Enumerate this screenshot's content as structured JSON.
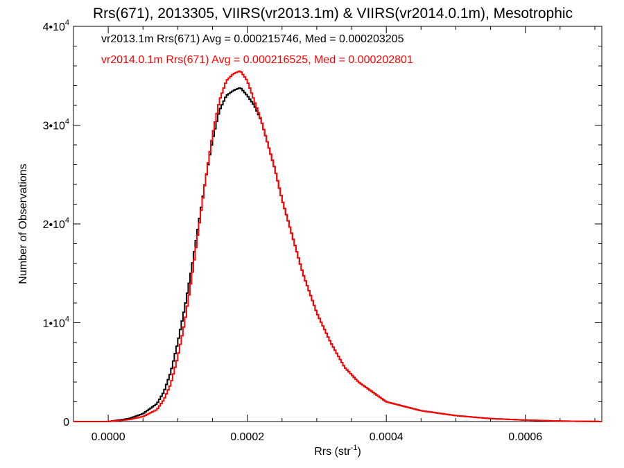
{
  "chart_data": {
    "type": "line",
    "title": "Rrs(671), 2013305, VIIRS(vr2013.1m) & VIIRS(vr2014.0.1m), Mesotrophic",
    "xlabel_main": "Rrs (str",
    "xlabel_sup": "-1",
    "xlabel_close": ")",
    "ylabel": "Number of Observations",
    "xlim": [
      -5e-05,
      0.00071
    ],
    "ylim": [
      0,
      40000
    ],
    "x_ticks": [
      {
        "value": 0.0,
        "label": "0.0000"
      },
      {
        "value": 0.0002,
        "label": "0.0002"
      },
      {
        "value": 0.0004,
        "label": "0.0004"
      },
      {
        "value": 0.0006,
        "label": "0.0006"
      }
    ],
    "y_ticks": [
      {
        "value": 0,
        "label": "0",
        "exp": ""
      },
      {
        "value": 10000,
        "label": "1•10",
        "exp": "4"
      },
      {
        "value": 20000,
        "label": "2•10",
        "exp": "4"
      },
      {
        "value": 30000,
        "label": "3•10",
        "exp": "4"
      },
      {
        "value": 40000,
        "label": "4•10",
        "exp": "4"
      }
    ],
    "grid": false,
    "legend": {
      "placement": "top-left",
      "entries": [
        {
          "text": "vr2013.1m Rrs(671) Avg = 0.000215746, Med = 0.000203205",
          "color": "#000000"
        },
        {
          "text": "vr2014.0.1m Rrs(671) Avg = 0.000216525, Med = 0.000202801",
          "color": "#ff0000"
        }
      ]
    },
    "series": [
      {
        "color": "#000000",
        "x": [
          -5e-05,
          0.0,
          3e-05,
          5e-05,
          7e-05,
          8e-05,
          9e-05,
          0.0001,
          0.00011,
          0.00012,
          0.00013,
          0.00014,
          0.00015,
          0.00016,
          0.00017,
          0.00018,
          0.00019,
          0.0002,
          0.00021,
          0.00022,
          0.00023,
          0.00024,
          0.00025,
          0.00026,
          0.00027,
          0.00028,
          0.0003,
          0.00032,
          0.00034,
          0.00036,
          0.00038,
          0.0004,
          0.00045,
          0.0005,
          0.00055,
          0.0006,
          0.00065,
          0.00071
        ],
        "y": [
          0,
          0,
          300,
          800,
          1800,
          3000,
          5000,
          8000,
          11500,
          15500,
          20000,
          24500,
          28500,
          31500,
          33000,
          33500,
          33800,
          33000,
          32000,
          30500,
          28000,
          25500,
          22500,
          20000,
          17500,
          15000,
          11000,
          8000,
          5500,
          4000,
          3000,
          2000,
          1100,
          600,
          300,
          150,
          50,
          0
        ]
      },
      {
        "color": "#ff0000",
        "x": [
          -5e-05,
          0.0,
          3e-05,
          5e-05,
          7e-05,
          8e-05,
          9e-05,
          0.0001,
          0.00011,
          0.00012,
          0.00013,
          0.00014,
          0.00015,
          0.00016,
          0.00017,
          0.00018,
          0.00019,
          0.0002,
          0.00021,
          0.00022,
          0.00023,
          0.00024,
          0.00025,
          0.00026,
          0.00027,
          0.00028,
          0.0003,
          0.00032,
          0.00034,
          0.00036,
          0.00038,
          0.0004,
          0.00045,
          0.0005,
          0.00055,
          0.0006,
          0.00065,
          0.00071
        ],
        "y": [
          0,
          0,
          200,
          500,
          1200,
          2200,
          3800,
          6500,
          10000,
          14500,
          19500,
          24500,
          29000,
          32500,
          34500,
          35200,
          35500,
          34500,
          32500,
          30500,
          28000,
          25500,
          22500,
          20000,
          17500,
          15000,
          11000,
          8000,
          5500,
          4000,
          3000,
          2000,
          1100,
          600,
          300,
          150,
          50,
          0
        ]
      }
    ]
  }
}
